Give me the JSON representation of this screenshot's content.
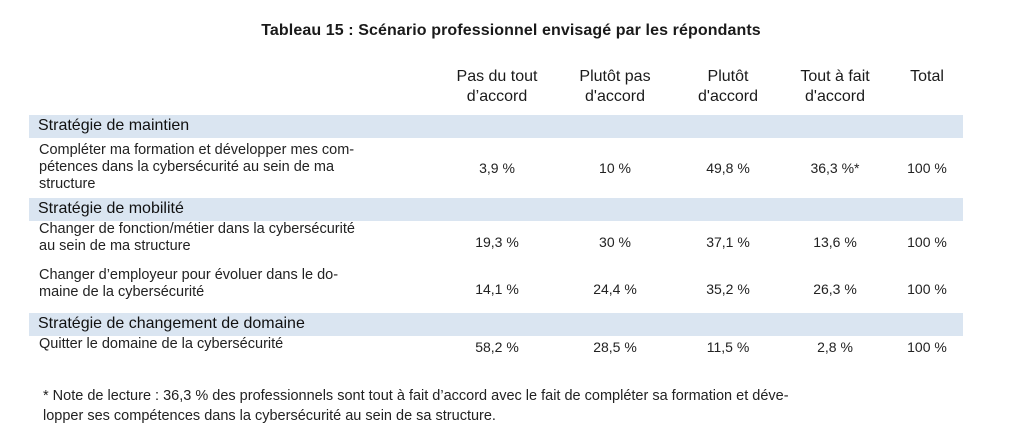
{
  "table": {
    "title": "Tableau 15 : Scénario professionnel envisagé par les répondants",
    "columns": [
      {
        "line1": "Pas du tout",
        "line2": "d’accord"
      },
      {
        "line1": "Plutôt pas",
        "line2": "d'accord"
      },
      {
        "line1": "Plutôt",
        "line2": "d'accord"
      },
      {
        "line1": "Tout à fait",
        "line2": "d'accord"
      },
      {
        "line1": "Total",
        "line2": ""
      }
    ],
    "sections": [
      {
        "title": "Stratégie de maintien",
        "rows": [
          {
            "label_lines": [
              "Compléter ma formation et développer mes com-",
              "pétences dans la cybersécurité au sein de ma",
              "structure"
            ],
            "values": [
              "3,9 %",
              "10 %",
              "49,8 %",
              "36,3 %*",
              "100 %"
            ]
          }
        ]
      },
      {
        "title": "Stratégie de mobilité",
        "rows": [
          {
            "label_lines": [
              "Changer de fonction/métier dans la cybersécurité",
              "au sein de ma structure"
            ],
            "values": [
              "19,3 %",
              "30 %",
              "37,1 %",
              "13,6 %",
              "100 %"
            ]
          },
          {
            "label_lines": [
              "Changer d’employeur pour évoluer dans le do-",
              "maine de la cybersécurité"
            ],
            "values": [
              "14,1 %",
              "24,4 %",
              "35,2 %",
              "26,3 %",
              "100 %"
            ]
          }
        ]
      },
      {
        "title": "Stratégie de changement de domaine",
        "rows": [
          {
            "label_lines": [
              "Quitter le domaine de la cybersécurité"
            ],
            "values": [
              "58,2 %",
              "28,5 %",
              "11,5 %",
              "2,8 %",
              "100 %"
            ]
          }
        ]
      }
    ]
  },
  "footnote": {
    "line1": "* Note de lecture : 36,3 % des professionnels sont tout à fait d’accord avec le fait de compléter sa formation et déve-",
    "line2": "lopper ses compétences dans la cybersécurité au sein de sa structure."
  },
  "colors": {
    "section_band": "#dae5f1",
    "text": "#1a1a1a"
  }
}
